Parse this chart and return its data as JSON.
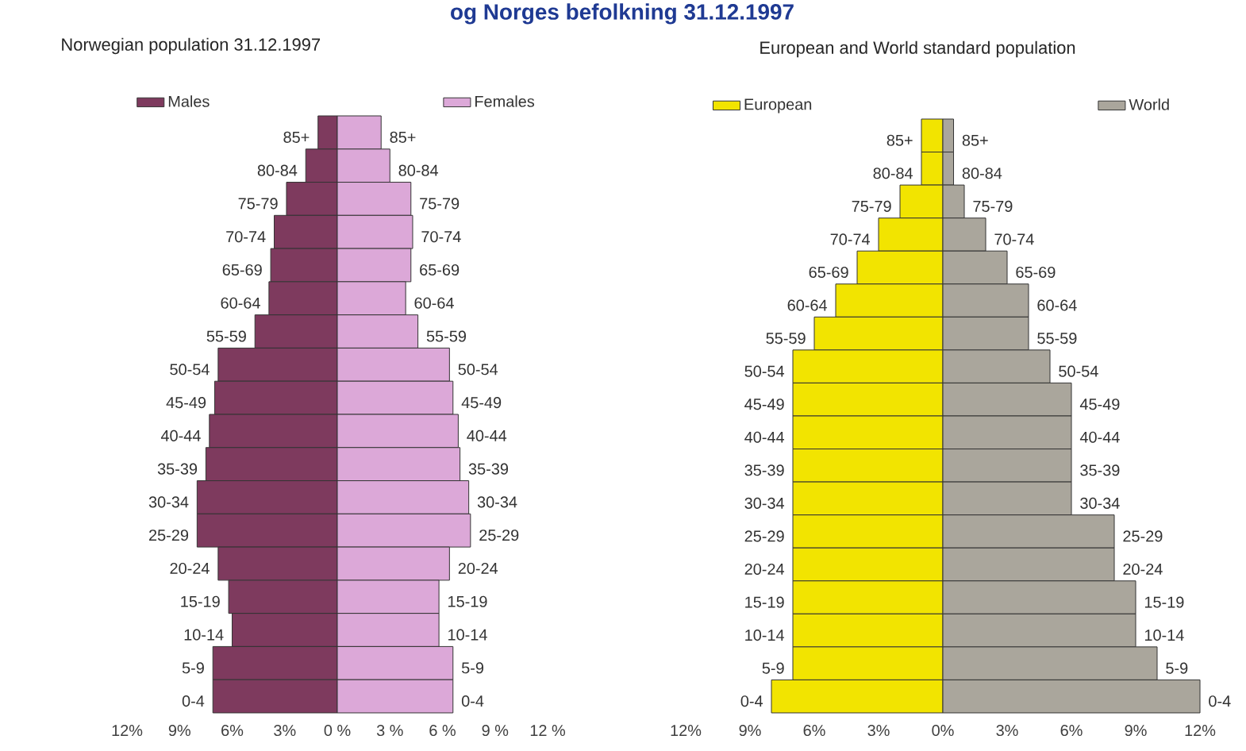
{
  "chart_data": [
    {
      "type": "bar",
      "orientation": "horizontal",
      "stacked": true,
      "legend": "top",
      "title": "Norwegian population 31.12.1997",
      "annotations": [
        "og Norges befolkning 31.12.1997"
      ],
      "categories": [
        "85+",
        "80-84",
        "75-79",
        "70-74",
        "65-69",
        "60-64",
        "55-59",
        "50-54",
        "45-49",
        "40-44",
        "35-39",
        "30-34",
        "25-29",
        "20-24",
        "15-19",
        "10-14",
        "5-9",
        "0-4"
      ],
      "series": [
        {
          "name": "Males",
          "color": "#7e3a5e",
          "values": [
            -1.1,
            -1.8,
            -2.9,
            -3.6,
            -3.8,
            -3.9,
            -4.7,
            -6.8,
            -7.0,
            -7.3,
            -7.5,
            -8.0,
            -8.0,
            -6.8,
            -6.2,
            -6.0,
            -7.1,
            -7.1
          ]
        },
        {
          "name": "Females",
          "color": "#dca8d8",
          "values": [
            2.5,
            3.0,
            4.2,
            4.3,
            4.2,
            3.9,
            4.6,
            6.4,
            6.6,
            6.9,
            7.0,
            7.5,
            7.6,
            6.4,
            5.8,
            5.8,
            6.6,
            6.6
          ]
        }
      ],
      "xlim": [
        -12,
        12
      ],
      "xticks": [
        {
          "value": -12,
          "label": "12%"
        },
        {
          "value": -9,
          "label": "9%"
        },
        {
          "value": -6,
          "label": "6%"
        },
        {
          "value": -3,
          "label": "3%"
        },
        {
          "value": 0,
          "label": "0 %"
        },
        {
          "value": 3,
          "label": "3 %"
        },
        {
          "value": 6,
          "label": "6 %"
        },
        {
          "value": 9,
          "label": "9 %"
        },
        {
          "value": 12,
          "label": "12 %"
        }
      ]
    },
    {
      "type": "bar",
      "orientation": "horizontal",
      "stacked": true,
      "legend": "top",
      "title": "European and World standard population",
      "categories": [
        "85+",
        "80-84",
        "75-79",
        "70-74",
        "65-69",
        "60-64",
        "55-59",
        "50-54",
        "45-49",
        "40-44",
        "35-39",
        "30-34",
        "25-29",
        "20-24",
        "15-19",
        "10-14",
        "5-9",
        "0-4"
      ],
      "series": [
        {
          "name": "European",
          "color": "#f2e400",
          "values": [
            -1,
            -1,
            -2,
            -3,
            -4,
            -5,
            -6,
            -7,
            -7,
            -7,
            -7,
            -7,
            -7,
            -7,
            -7,
            -7,
            -7,
            -8
          ]
        },
        {
          "name": "World",
          "color": "#aaa69c",
          "values": [
            0.5,
            0.5,
            1,
            2,
            3,
            4,
            4,
            5,
            6,
            6,
            6,
            6,
            8,
            8,
            9,
            9,
            10,
            12
          ]
        }
      ],
      "xlim": [
        -12,
        12
      ],
      "xticks": [
        {
          "value": -12,
          "label": "12%"
        },
        {
          "value": -9,
          "label": "9%"
        },
        {
          "value": -6,
          "label": "6%"
        },
        {
          "value": -3,
          "label": "3%"
        },
        {
          "value": 0,
          "label": "0%"
        },
        {
          "value": 3,
          "label": "3%"
        },
        {
          "value": 6,
          "label": "6%"
        },
        {
          "value": 9,
          "label": "9%"
        },
        {
          "value": 12,
          "label": "12%"
        }
      ]
    }
  ]
}
